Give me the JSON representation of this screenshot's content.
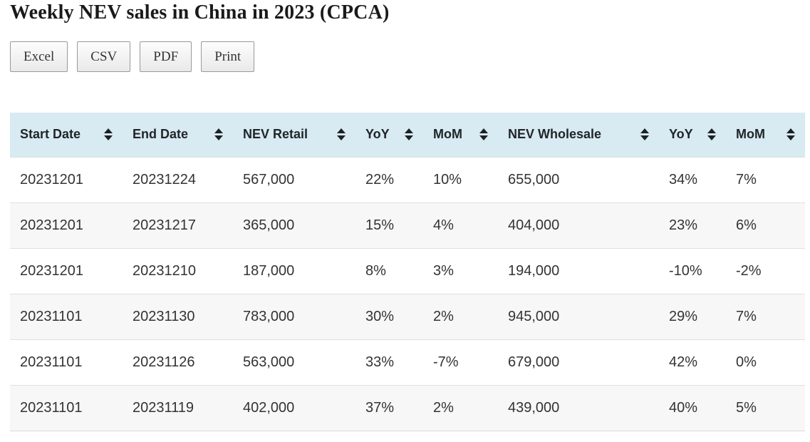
{
  "page": {
    "title": "Weekly NEV sales in China in 2023 (CPCA)"
  },
  "toolbar": {
    "buttons": [
      {
        "name": "excel",
        "label": "Excel"
      },
      {
        "name": "csv",
        "label": "CSV"
      },
      {
        "name": "pdf",
        "label": "PDF"
      },
      {
        "name": "print",
        "label": "Print"
      }
    ]
  },
  "table": {
    "columns": [
      {
        "name": "start-date",
        "label": "Start Date",
        "sort_icon": "sort-both-icon"
      },
      {
        "name": "end-date",
        "label": "End Date",
        "sort_icon": "sort-both-icon"
      },
      {
        "name": "nev-retail",
        "label": "NEV Retail",
        "sort_icon": "sort-both-icon"
      },
      {
        "name": "yoy-retail",
        "label": "YoY",
        "sort_icon": "sort-both-icon"
      },
      {
        "name": "mom-retail",
        "label": "MoM",
        "sort_icon": "sort-both-icon"
      },
      {
        "name": "nev-wholesale",
        "label": "NEV Wholesale",
        "sort_icon": "sort-both-icon"
      },
      {
        "name": "yoy-wholesale",
        "label": "YoY",
        "sort_icon": "sort-both-icon"
      },
      {
        "name": "mom-wholesale",
        "label": "MoM",
        "sort_icon": "sort-both-icon"
      }
    ],
    "rows": [
      [
        "20231201",
        "20231224",
        "567,000",
        "22%",
        "10%",
        "655,000",
        "34%",
        "7%"
      ],
      [
        "20231201",
        "20231217",
        "365,000",
        "15%",
        "4%",
        "404,000",
        "23%",
        "6%"
      ],
      [
        "20231201",
        "20231210",
        "187,000",
        "8%",
        "3%",
        "194,000",
        "-10%",
        "-2%"
      ],
      [
        "20231101",
        "20231130",
        "783,000",
        "30%",
        "2%",
        "945,000",
        "29%",
        "7%"
      ],
      [
        "20231101",
        "20231126",
        "563,000",
        "33%",
        "-7%",
        "679,000",
        "42%",
        "0%"
      ],
      [
        "20231101",
        "20231119",
        "402,000",
        "37%",
        "2%",
        "439,000",
        "40%",
        "5%"
      ]
    ]
  },
  "colors": {
    "header_bg": "#d8eaf2",
    "stripe_bg": "#f7f7f7",
    "row_border": "#e0e0e0",
    "button_border": "#999999",
    "sort_icon": "#1d2124",
    "text": "#333333"
  }
}
